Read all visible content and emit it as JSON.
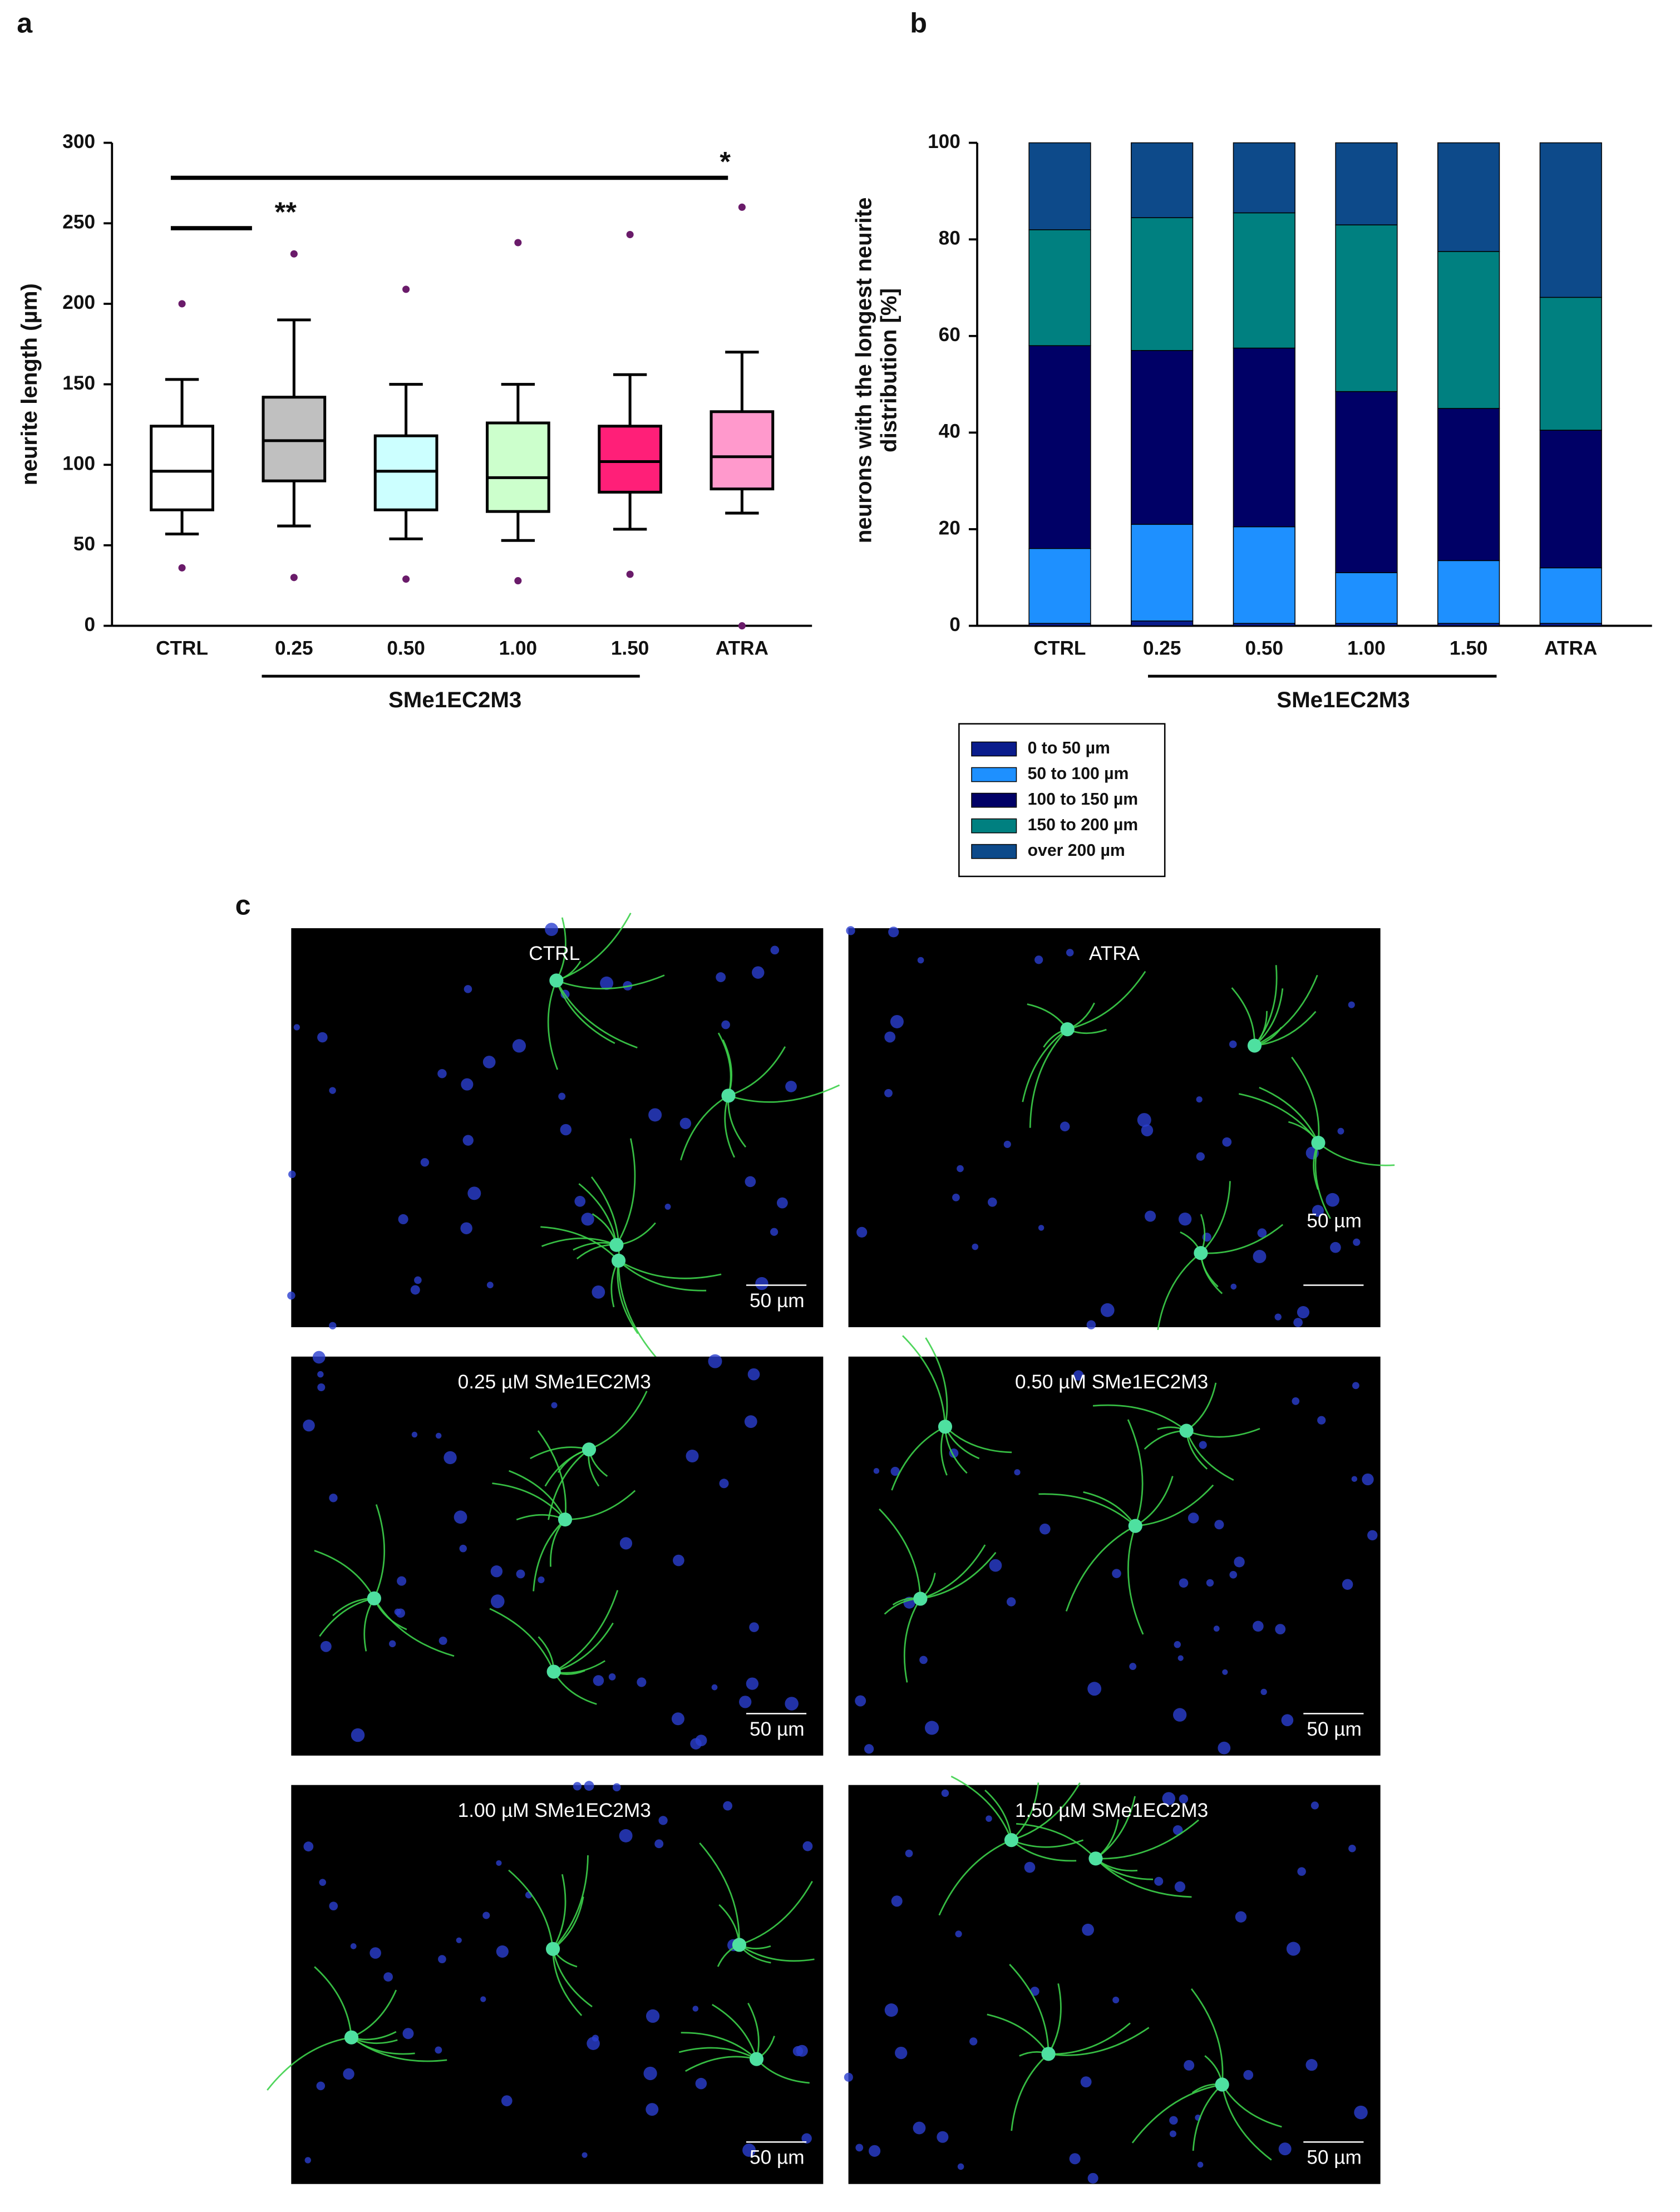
{
  "panel_labels": [
    "a",
    "b",
    "c"
  ],
  "chart_data": [
    {
      "type": "box",
      "ylabel": "neurite length (µm)",
      "categories": [
        "CTRL",
        "0.25",
        "0.50",
        "1.00",
        "1.50",
        "ATRA"
      ],
      "colors": [
        "#ffffff",
        "#c0c0c0",
        "#ccffff",
        "#ccffcc",
        "#ff1f78",
        "#ff99cc"
      ],
      "boxes": [
        {
          "whislo": 57,
          "q1": 72,
          "med": 96,
          "q3": 124,
          "whishi": 153,
          "fliers": [
            200,
            36
          ]
        },
        {
          "whislo": 62,
          "q1": 90,
          "med": 115,
          "q3": 142,
          "whishi": 190,
          "fliers": [
            231,
            30
          ]
        },
        {
          "whislo": 54,
          "q1": 72,
          "med": 96,
          "q3": 118,
          "whishi": 150,
          "fliers": [
            209,
            29
          ]
        },
        {
          "whislo": 53,
          "q1": 71,
          "med": 92,
          "q3": 126,
          "whishi": 150,
          "fliers": [
            238,
            28
          ]
        },
        {
          "whislo": 60,
          "q1": 83,
          "med": 102,
          "q3": 124,
          "whishi": 156,
          "fliers": [
            243,
            32
          ]
        },
        {
          "whislo": 70,
          "q1": 85,
          "med": 105,
          "q3": 133,
          "whishi": 170,
          "fliers": [
            260,
            0
          ]
        }
      ],
      "significance": [
        {
          "from": "CTRL",
          "to": "0.25",
          "label": "**"
        },
        {
          "from": "CTRL",
          "to": "ATRA",
          "label": "*"
        }
      ],
      "group": {
        "label": "SMe1EC2M3",
        "span": [
          "0.25",
          "1.50"
        ]
      },
      "ylim": [
        0,
        300
      ],
      "yticks": [
        0,
        50,
        100,
        150,
        200,
        250,
        300
      ]
    },
    {
      "type": "stacked-bar",
      "ylabel": [
        "neurons with the longest neurite",
        "distribution [%]"
      ],
      "categories": [
        "CTRL",
        "0.25",
        "0.50",
        "1.00",
        "1.50",
        "ATRA"
      ],
      "series": [
        {
          "name": "0 to 50 µm",
          "color": "#0a1c8c",
          "values": [
            0.5,
            1,
            0.5,
            0.5,
            0.5,
            0.5
          ]
        },
        {
          "name": "50 to 100 µm",
          "color": "#1e90ff",
          "values": [
            15.5,
            20,
            20,
            10.5,
            13,
            11.5
          ]
        },
        {
          "name": "100 to 150 µm",
          "color": "#000066",
          "values": [
            42,
            36,
            37,
            37.5,
            31.5,
            28.5
          ]
        },
        {
          "name": "150 to 200 µm",
          "color": "#008080",
          "values": [
            24,
            27.5,
            28,
            34.5,
            32.5,
            27.5
          ]
        },
        {
          "name": "over 200  µm",
          "color": "#0d4a8a",
          "values": [
            18,
            15.5,
            14.5,
            17,
            22.5,
            32
          ]
        }
      ],
      "group": {
        "label": "SMe1EC2M3",
        "span": [
          "0.25",
          "1.50"
        ]
      },
      "ylim": [
        0,
        100
      ],
      "yticks": [
        0,
        20,
        40,
        60,
        80,
        100
      ]
    }
  ],
  "micrographs": [
    {
      "label": "CTRL",
      "scale_bar": "50 µm"
    },
    {
      "label": "ATRA",
      "scale_bar": "50 µm"
    },
    {
      "label": "0.25 µM  SMe1EC2M3",
      "scale_bar": "50 µm"
    },
    {
      "label": "0.50 µM  SMe1EC2M3",
      "scale_bar": "50 µm"
    },
    {
      "label": "1.00 µM SMe1EC2M3",
      "scale_bar": "50 µm"
    },
    {
      "label": "1.50 µM SMe1EC2M3",
      "scale_bar": "50 µm"
    }
  ]
}
